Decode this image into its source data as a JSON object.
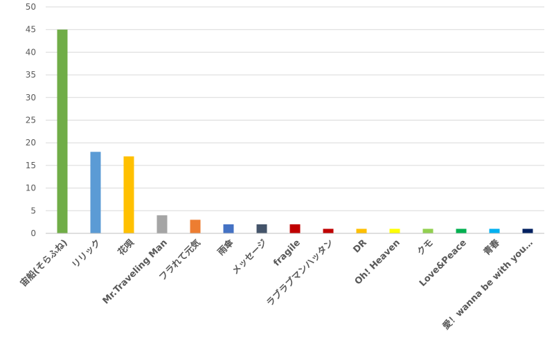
{
  "chart_data": {
    "type": "bar",
    "title": "",
    "xlabel": "",
    "ylabel": "",
    "ylim": [
      0,
      50
    ],
    "yticks": [
      0,
      5,
      10,
      15,
      20,
      25,
      30,
      35,
      40,
      45,
      50
    ],
    "grid": true,
    "legend": "none",
    "categories": [
      "宙船(そらふね)",
      "リリック",
      "花唄",
      "Mr.Traveling Man",
      "フラれて元気",
      "雨傘",
      "メッセージ",
      "fragile",
      "ラブラブマンハッタン",
      "DR",
      "Oh! Heaven",
      "クモ",
      "Love&Peace",
      "青春",
      "愛！wanna be with you…"
    ],
    "values": [
      45,
      18,
      17,
      4,
      3,
      2,
      2,
      2,
      1,
      1,
      1,
      1,
      1,
      1,
      1
    ],
    "colors": [
      "#70ad47",
      "#5b9bd5",
      "#ffc000",
      "#a5a5a5",
      "#ed7d31",
      "#4472c4",
      "#44546a",
      "#c00000",
      "#c00000",
      "#ffc000",
      "#ffff00",
      "#92d050",
      "#00b050",
      "#00b0f0",
      "#002060"
    ]
  }
}
